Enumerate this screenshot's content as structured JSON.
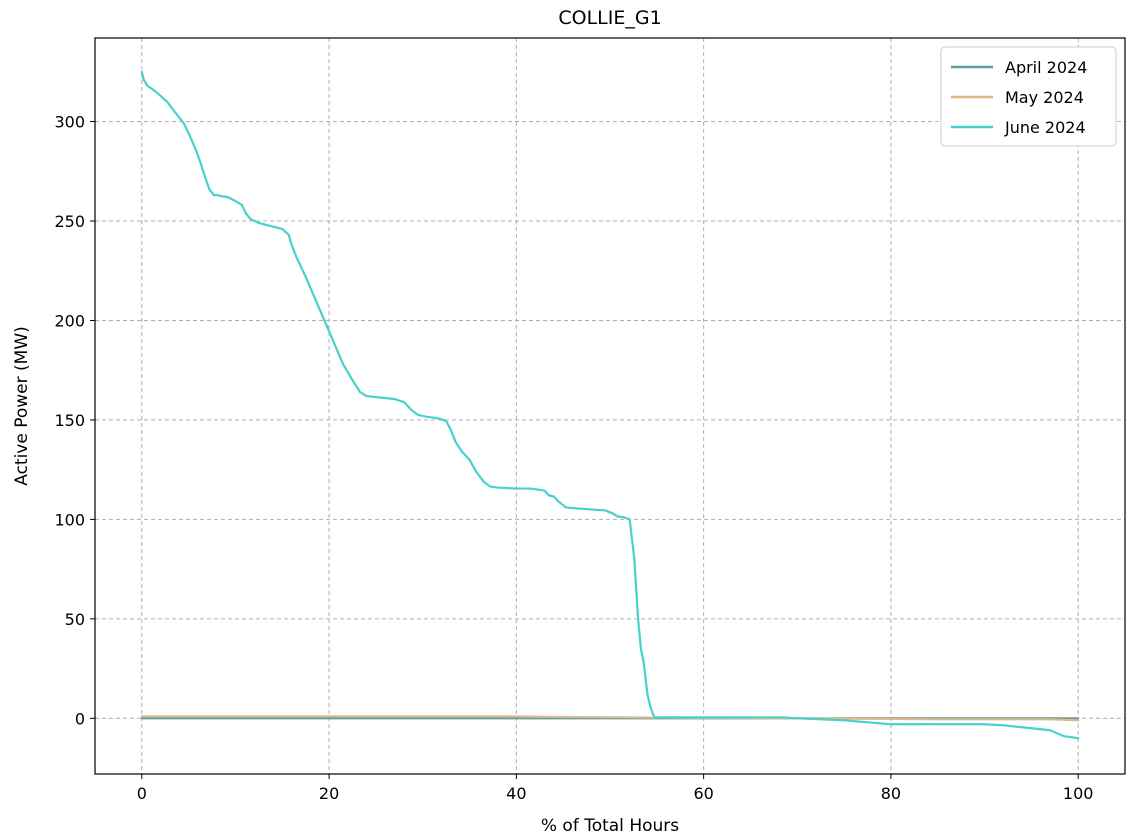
{
  "chart_data": {
    "type": "line",
    "title": "COLLIE_G1",
    "xlabel": "% of Total Hours",
    "ylabel": "Active Power (MW)",
    "xlim": [
      -5,
      105
    ],
    "ylim": [
      -28,
      342
    ],
    "xticks": [
      0,
      20,
      40,
      60,
      80,
      100
    ],
    "yticks": [
      0,
      50,
      100,
      150,
      200,
      250,
      300
    ],
    "xtick_labels": [
      "0",
      "20",
      "40",
      "60",
      "80",
      "100"
    ],
    "ytick_labels": [
      "0",
      "50",
      "100",
      "150",
      "200",
      "250",
      "300"
    ],
    "grid": true,
    "legend_position": "top-right",
    "series": [
      {
        "name": "April 2024",
        "color": "#5f9ea0",
        "x": [
          0,
          100
        ],
        "y": [
          0,
          0
        ]
      },
      {
        "name": "May 2024",
        "color": "#deb887",
        "x": [
          0,
          5,
          20,
          37,
          50,
          70,
          85,
          97,
          100
        ],
        "y": [
          1,
          1,
          1,
          1,
          0.5,
          0,
          -0.5,
          -0.5,
          -1
        ]
      },
      {
        "name": "June 2024",
        "color": "#48d1cc",
        "x": [
          0,
          0.2,
          0.6,
          1.5,
          2.7,
          3.5,
          4.5,
          5.3,
          6,
          6.7,
          7.2,
          7.7,
          8.1,
          8.5,
          9.2,
          10,
          10.7,
          11.1,
          11.6,
          12.5,
          13.7,
          15,
          15.7,
          16,
          16.5,
          17.5,
          18.5,
          19.5,
          20.5,
          21.5,
          22.5,
          23.3,
          24,
          25,
          27,
          28,
          28.8,
          29.5,
          30.5,
          31.5,
          32.5,
          33,
          33.5,
          34.2,
          35,
          35.7,
          36.5,
          37.2,
          38,
          40,
          41.5,
          43,
          43.5,
          44,
          44.5,
          45.3,
          46.5,
          48,
          49.5,
          50.3,
          50.8,
          51.5,
          52.1,
          52.6,
          53,
          53.3,
          53.6,
          53.8,
          54,
          54.3,
          54.6,
          54.8,
          55,
          60,
          68.5,
          70,
          75,
          80,
          85,
          90,
          92,
          95,
          97,
          98.5,
          100
        ],
        "y": [
          325,
          321,
          318,
          315,
          310,
          305,
          299,
          291,
          283,
          273,
          266,
          263,
          263,
          262.5,
          262,
          260,
          258,
          254,
          251,
          249,
          247.5,
          246,
          243,
          238,
          232,
          222,
          211,
          200,
          189,
          178,
          170,
          164,
          162,
          161.5,
          160.5,
          159,
          155,
          152.5,
          151.5,
          151,
          149.5,
          145,
          139,
          134,
          130,
          124,
          119,
          116.5,
          116,
          115.5,
          115.5,
          114.5,
          112,
          111.5,
          109,
          106,
          105.5,
          105,
          104.5,
          103,
          101.5,
          101,
          100,
          80,
          50,
          35,
          28,
          20,
          12,
          6,
          2,
          0.5,
          0.5,
          0.5,
          0.5,
          0,
          -1,
          -3,
          -3,
          -3,
          -3.5,
          -5,
          -6,
          -9,
          -10
        ]
      }
    ]
  }
}
